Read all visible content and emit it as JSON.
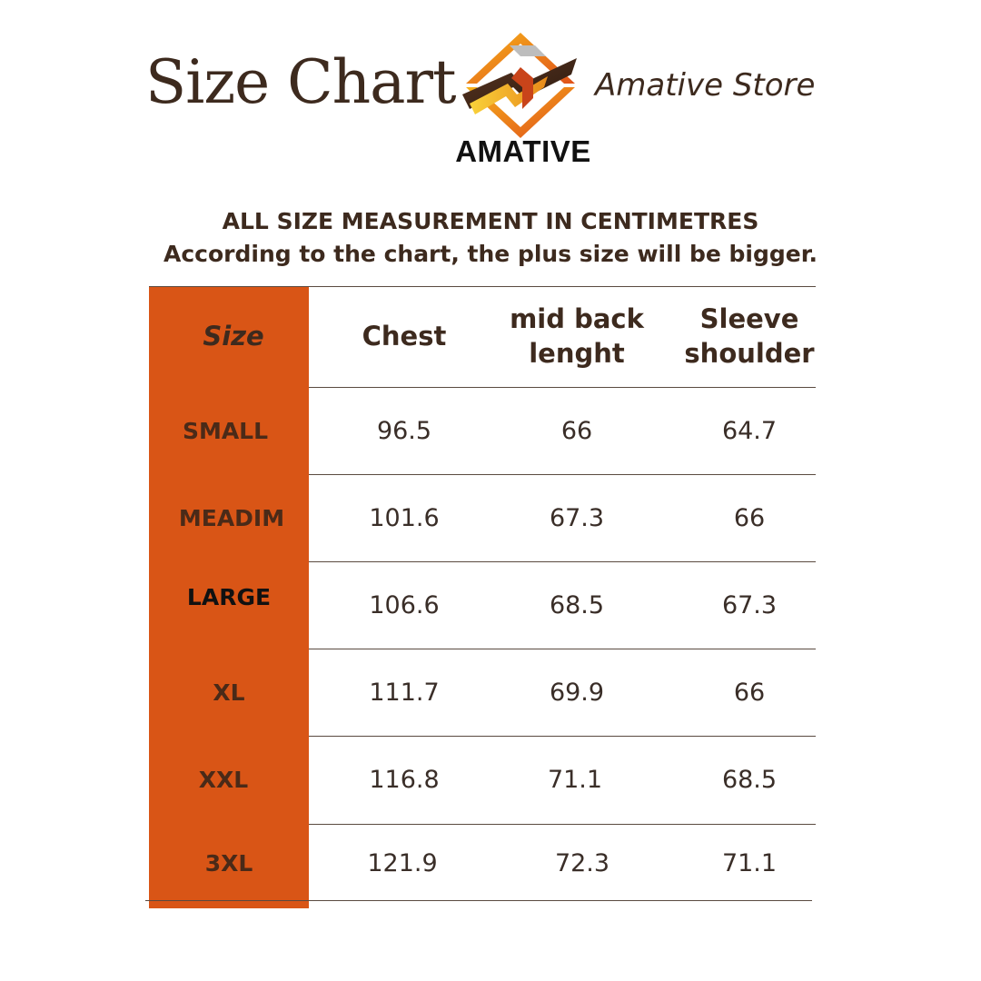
{
  "header": {
    "title": "Size Chart",
    "brand_logo": "amative-logo",
    "brand_word": "AMATIVE",
    "store_name": "Amative Store"
  },
  "subtitles": {
    "line1": "ALL SIZE MEASUREMENT IN CENTIMETRES",
    "line2": "According to the chart, the plus size will be bigger."
  },
  "colors": {
    "size_column": "#d95516",
    "text": "#3d2a1e"
  },
  "table": {
    "headers": [
      [
        "Size"
      ],
      [
        "Chest"
      ],
      [
        "mid back",
        "lenght"
      ],
      [
        "Sleeve",
        "shoulder"
      ]
    ],
    "rows": [
      {
        "size": "SMALL",
        "chest": "96.5",
        "mid_back": "66",
        "sleeve": "64.7"
      },
      {
        "size": "MEADIM",
        "chest": "101.6",
        "mid_back": "67.3",
        "sleeve": "66"
      },
      {
        "size": "LARGE",
        "chest": "106.6",
        "mid_back": "68.5",
        "sleeve": "67.3"
      },
      {
        "size": "XL",
        "chest": "111.7",
        "mid_back": "69.9",
        "sleeve": "66"
      },
      {
        "size": "XXL",
        "chest": "116.8",
        "mid_back": "71.1",
        "sleeve": "68.5"
      },
      {
        "size": "3XL",
        "chest": "121.9",
        "mid_back": "72.3",
        "sleeve": "71.1"
      }
    ]
  }
}
